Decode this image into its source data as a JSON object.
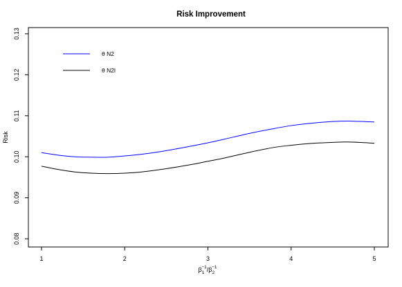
{
  "chart_data": {
    "type": "line",
    "title": "Risk Improvement",
    "ylabel": "Risk",
    "xlabel": {
      "base1": "β",
      "sub1": "1",
      "sup1": "−1",
      "sep": "/",
      "base2": "β",
      "sub2": "2",
      "sup2": "−1"
    },
    "xlim": [
      1,
      5
    ],
    "ylim": [
      0.078,
      0.1315
    ],
    "xticks": [
      1,
      2,
      3,
      4,
      5
    ],
    "xtick_labels": [
      "1",
      "2",
      "3",
      "4",
      "5"
    ],
    "yticks": [
      0.08,
      0.09,
      0.1,
      0.11,
      0.12,
      0.13
    ],
    "ytick_labels": [
      "0.08",
      "0.09",
      "0.10",
      "0.11",
      "0.12",
      "0.13"
    ],
    "grid": false,
    "legend_position": "top-left",
    "series": [
      {
        "name": "θ N2",
        "color": "#0000ff",
        "x": [
          1.0,
          1.2,
          1.4,
          1.6,
          1.8,
          2.0,
          2.2,
          2.5,
          2.8,
          3.0,
          3.2,
          3.5,
          3.8,
          4.0,
          4.2,
          4.5,
          4.7,
          5.0
        ],
        "y": [
          0.101,
          0.1004,
          0.1,
          0.0999,
          0.0999,
          0.1002,
          0.1006,
          0.1015,
          0.1026,
          0.1034,
          0.1043,
          0.1057,
          0.1069,
          0.1076,
          0.1081,
          0.1086,
          0.1087,
          0.1085
        ]
      },
      {
        "name": "θ N2l",
        "color": "#000000",
        "x": [
          1.0,
          1.2,
          1.4,
          1.6,
          1.8,
          2.0,
          2.2,
          2.5,
          2.8,
          3.0,
          3.2,
          3.5,
          3.8,
          4.0,
          4.2,
          4.5,
          4.7,
          5.0
        ],
        "y": [
          0.0977,
          0.0969,
          0.0963,
          0.096,
          0.0959,
          0.096,
          0.0963,
          0.0971,
          0.0981,
          0.0989,
          0.0997,
          0.1011,
          0.1023,
          0.1028,
          0.1032,
          0.1035,
          0.1036,
          0.1033
        ]
      }
    ]
  }
}
